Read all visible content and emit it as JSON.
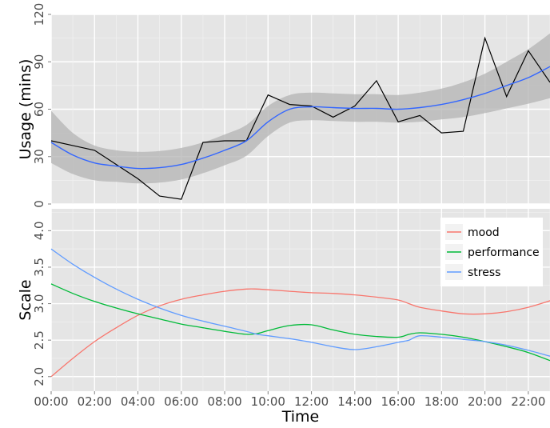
{
  "colors": {
    "panel_bg": "#e5e5e5",
    "grid_major": "#ffffff",
    "ribbon": "#b3b3b3",
    "usage_line": "#000000",
    "smooth_line": "#3366ff",
    "mood": "#f8766d",
    "performance": "#00ba38",
    "stress": "#619cff"
  },
  "chart_data": [
    {
      "type": "line",
      "ylabel": "Usage (mins)",
      "ylim": [
        0,
        120
      ],
      "xlim": [
        0,
        23
      ],
      "yticks": [
        0,
        30,
        60,
        90,
        120
      ],
      "series": [
        {
          "role": "usage",
          "x": [
            0,
            1,
            2,
            3,
            4,
            5,
            6,
            7,
            8,
            9,
            10,
            11,
            12,
            13,
            14,
            15,
            16,
            17,
            18,
            19,
            20,
            21,
            22,
            23
          ],
          "values": [
            40,
            37,
            34,
            25,
            16,
            5,
            3,
            39,
            40,
            40,
            69,
            63,
            62,
            55,
            62,
            78,
            52,
            56,
            45,
            46,
            105,
            68,
            97,
            77
          ]
        },
        {
          "role": "smooth",
          "x": [
            0,
            1,
            2,
            3,
            4,
            5,
            6,
            7,
            8,
            9,
            10,
            11,
            12,
            13,
            14,
            15,
            16,
            17,
            18,
            19,
            20,
            21,
            22,
            23
          ],
          "values": [
            39,
            31,
            26,
            24,
            22.5,
            23,
            25,
            29,
            34,
            40,
            52,
            60,
            61.5,
            61,
            60.5,
            60.5,
            60,
            61,
            63,
            66,
            70,
            75,
            80,
            87
          ],
          "ribbon_low": [
            26,
            19,
            15,
            14,
            13,
            13.5,
            15.5,
            19.5,
            24.5,
            30.5,
            43,
            51.5,
            53,
            52.5,
            52,
            52,
            51.5,
            52,
            53.5,
            55,
            57.5,
            60.5,
            63.5,
            67
          ],
          "ribbon_high": [
            59,
            45,
            37,
            34,
            33,
            33.5,
            35.5,
            39,
            44,
            50,
            62,
            69,
            70.5,
            70,
            69.5,
            69.5,
            69,
            70.5,
            73,
            77,
            82.5,
            90,
            98,
            108
          ]
        }
      ]
    },
    {
      "type": "line",
      "xlabel": "Time",
      "ylabel": "Scale",
      "ylim": [
        1.8,
        4.3
      ],
      "xlim": [
        0,
        23
      ],
      "yticks": [
        "2.0",
        "2.5",
        "3.0",
        "3.5",
        "4.0"
      ],
      "xticks": [
        "00:00",
        "02:00",
        "04:00",
        "06:00",
        "08:00",
        "10:00",
        "12:00",
        "14:00",
        "16:00",
        "18:00",
        "20:00",
        "22:00"
      ],
      "series": [
        {
          "name": "mood",
          "x": [
            0,
            1,
            2,
            3,
            4,
            5,
            6,
            7,
            8,
            9,
            9.5,
            10,
            11,
            12,
            13,
            14,
            15,
            16,
            16.5,
            17,
            18,
            19,
            20,
            21,
            22,
            23
          ],
          "values": [
            2.0,
            2.25,
            2.48,
            2.67,
            2.84,
            2.97,
            3.06,
            3.12,
            3.17,
            3.2,
            3.2,
            3.19,
            3.17,
            3.15,
            3.14,
            3.12,
            3.09,
            3.05,
            3.0,
            2.95,
            2.9,
            2.86,
            2.86,
            2.89,
            2.95,
            3.04
          ]
        },
        {
          "name": "performance",
          "x": [
            0,
            1,
            2,
            3,
            4,
            5,
            6,
            7,
            8,
            9,
            9.5,
            10,
            11,
            12,
            13,
            14,
            15,
            16,
            16.5,
            17,
            18,
            19,
            20,
            21,
            22,
            23
          ],
          "values": [
            3.27,
            3.14,
            3.03,
            2.94,
            2.86,
            2.79,
            2.72,
            2.67,
            2.62,
            2.58,
            2.59,
            2.63,
            2.7,
            2.71,
            2.64,
            2.58,
            2.55,
            2.54,
            2.58,
            2.6,
            2.58,
            2.54,
            2.48,
            2.41,
            2.33,
            2.22
          ]
        },
        {
          "name": "stress",
          "x": [
            0,
            1,
            2,
            3,
            4,
            5,
            6,
            7,
            8,
            9,
            9.5,
            10,
            11,
            12,
            13,
            14,
            15,
            16,
            16.5,
            17,
            18,
            19,
            20,
            21,
            22,
            23
          ],
          "values": [
            3.75,
            3.54,
            3.36,
            3.2,
            3.06,
            2.94,
            2.84,
            2.76,
            2.69,
            2.62,
            2.58,
            2.56,
            2.52,
            2.47,
            2.41,
            2.37,
            2.41,
            2.47,
            2.5,
            2.56,
            2.54,
            2.51,
            2.48,
            2.43,
            2.36,
            2.28
          ]
        }
      ],
      "legend": {
        "position": "top-right",
        "entries": [
          "mood",
          "performance",
          "stress"
        ]
      }
    }
  ]
}
